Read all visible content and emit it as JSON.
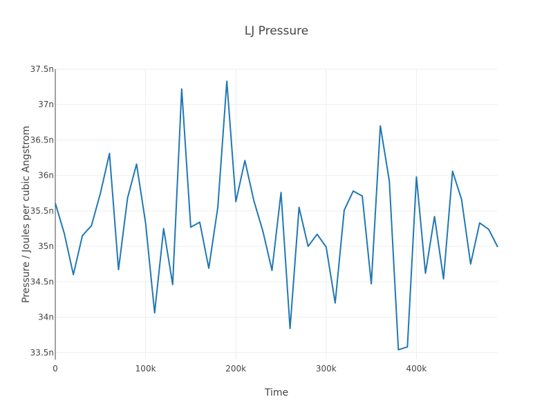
{
  "chart_data": {
    "type": "line",
    "title": "LJ Pressure",
    "xlabel": "Time",
    "ylabel": "Pressure / Joules per cubic Angstrom",
    "xlim": [
      0,
      490000
    ],
    "ylim": [
      3.34e-08,
      3.75e-08
    ],
    "x_ticks": [
      0,
      100000,
      200000,
      300000,
      400000
    ],
    "x_tick_labels": [
      "0",
      "100k",
      "200k",
      "300k",
      "400k"
    ],
    "y_ticks": [
      3.35e-08,
      3.4e-08,
      3.45e-08,
      3.5e-08,
      3.55e-08,
      3.6e-08,
      3.65e-08,
      3.7e-08,
      3.75e-08
    ],
    "y_tick_labels": [
      "33.5n",
      "34n",
      "34.5n",
      "35n",
      "35.5n",
      "36n",
      "36.5n",
      "37n",
      "37.5n"
    ],
    "grid": true,
    "colors": {
      "series": "#1f77b4",
      "grid": "#eeeeee",
      "axis": "#444444"
    },
    "x": [
      0,
      10000,
      20000,
      30000,
      40000,
      50000,
      60000,
      70000,
      80000,
      90000,
      100000,
      110000,
      120000,
      130000,
      140000,
      150000,
      160000,
      170000,
      180000,
      190000,
      200000,
      210000,
      220000,
      230000,
      240000,
      250000,
      260000,
      270000,
      280000,
      290000,
      300000,
      310000,
      320000,
      330000,
      340000,
      350000,
      360000,
      370000,
      380000,
      390000,
      400000,
      410000,
      420000,
      430000,
      440000,
      450000,
      460000,
      470000,
      480000,
      490000
    ],
    "y": [
      3.561e-08,
      3.518e-08,
      3.46e-08,
      3.515e-08,
      3.529e-08,
      3.575e-08,
      3.631e-08,
      3.467e-08,
      3.568e-08,
      3.616e-08,
      3.533e-08,
      3.406e-08,
      3.525e-08,
      3.446e-08,
      3.722e-08,
      3.527e-08,
      3.534e-08,
      3.469e-08,
      3.555e-08,
      3.733e-08,
      3.563e-08,
      3.621e-08,
      3.564e-08,
      3.521e-08,
      3.466e-08,
      3.576e-08,
      3.384e-08,
      3.555e-08,
      3.5e-08,
      3.517e-08,
      3.499e-08,
      3.42e-08,
      3.551e-08,
      3.578e-08,
      3.571e-08,
      3.447e-08,
      3.67e-08,
      3.592e-08,
      3.354e-08,
      3.358e-08,
      3.598e-08,
      3.462e-08,
      3.542e-08,
      3.454e-08,
      3.606e-08,
      3.566e-08,
      3.475e-08,
      3.533e-08,
      3.524e-08,
      3.499e-08
    ]
  }
}
